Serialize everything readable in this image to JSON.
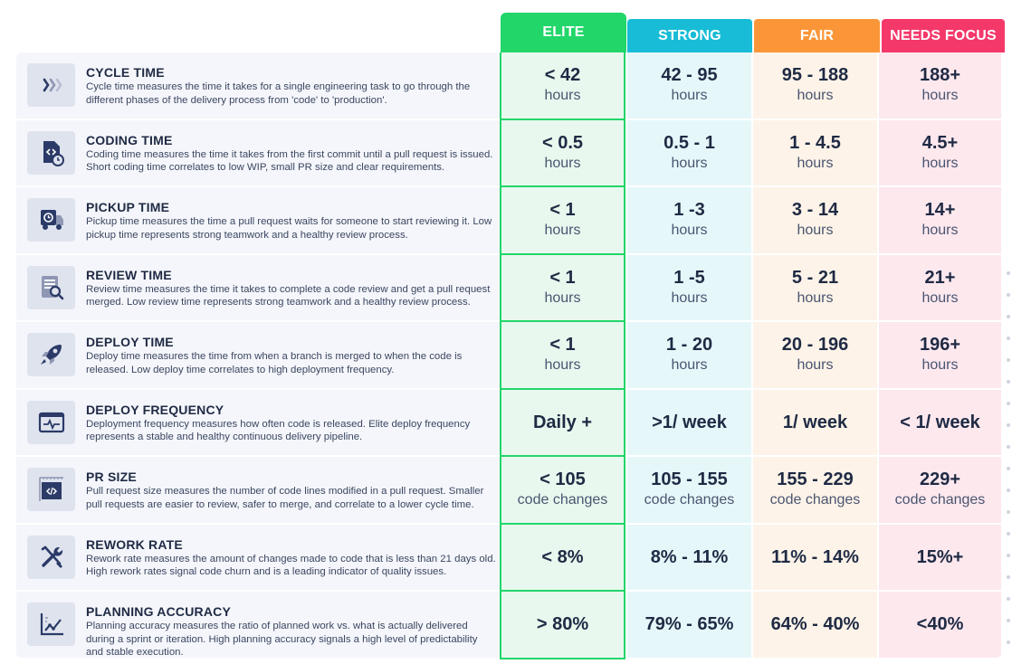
{
  "headers": {
    "elite": "ELITE",
    "strong": "STRONG",
    "fair": "FAIR",
    "needs_focus": "NEEDS FOCUS"
  },
  "colors": {
    "elite": "#22d66a",
    "strong": "#18bcd6",
    "fair": "#fb9638",
    "needs_focus": "#f4386a"
  },
  "rows": [
    {
      "icon": "chevrons-icon",
      "title": "CYCLE TIME",
      "desc": "Cycle time measures the time it takes for a single engineering task to go through the different phases of the delivery process from 'code' to 'production'.",
      "elite": {
        "main": "< 42",
        "unit": "hours"
      },
      "strong": {
        "main": "42 - 95",
        "unit": "hours"
      },
      "fair": {
        "main": "95 - 188",
        "unit": "hours"
      },
      "focus": {
        "main": "188+",
        "unit": "hours"
      }
    },
    {
      "icon": "code-file-clock-icon",
      "title": "CODING TIME",
      "desc": "Coding time measures the time it takes from the first commit until a pull request is issued. Short coding time correlates to low WIP, small PR size and clear requirements.",
      "elite": {
        "main": "< 0.5",
        "unit": "hours"
      },
      "strong": {
        "main": "0.5 - 1",
        "unit": "hours"
      },
      "fair": {
        "main": "1 - 4.5",
        "unit": "hours"
      },
      "focus": {
        "main": "4.5+",
        "unit": "hours"
      }
    },
    {
      "icon": "pickup-truck-icon",
      "title": "PICKUP TIME",
      "desc": "Pickup time measures the time a pull request waits for someone to start reviewing it. Low pickup time represents strong teamwork and a healthy review process.",
      "elite": {
        "main": "< 1",
        "unit": "hours"
      },
      "strong": {
        "main": "1 -3",
        "unit": "hours"
      },
      "fair": {
        "main": "3 - 14",
        "unit": "hours"
      },
      "focus": {
        "main": "14+",
        "unit": "hours"
      }
    },
    {
      "icon": "review-document-icon",
      "title": "REVIEW TIME",
      "desc": "Review time measures the time it takes to complete a code review and get a pull request merged. Low review time represents strong teamwork and a healthy review process.",
      "elite": {
        "main": "< 1",
        "unit": "hours"
      },
      "strong": {
        "main": "1 -5",
        "unit": "hours"
      },
      "fair": {
        "main": "5 - 21",
        "unit": "hours"
      },
      "focus": {
        "main": "21+",
        "unit": "hours"
      }
    },
    {
      "icon": "rocket-icon",
      "title": "DEPLOY TIME",
      "desc": "Deploy time measures the time from when a branch is merged to when the code is released. Low deploy time correlates to high deployment frequency.",
      "elite": {
        "main": "< 1",
        "unit": "hours"
      },
      "strong": {
        "main": "1 - 20",
        "unit": "hours"
      },
      "fair": {
        "main": "20 - 196",
        "unit": "hours"
      },
      "focus": {
        "main": "196+",
        "unit": "hours"
      }
    },
    {
      "icon": "pulse-window-icon",
      "title": "DEPLOY FREQUENCY",
      "desc": "Deployment frequency measures how often code is released. Elite deploy frequency represents a stable and healthy continuous delivery pipeline.",
      "elite": {
        "main": "Daily +",
        "unit": ""
      },
      "strong": {
        "main": ">1/ week",
        "unit": ""
      },
      "fair": {
        "main": "1/ week",
        "unit": ""
      },
      "focus": {
        "main": "< 1/ week",
        "unit": ""
      }
    },
    {
      "icon": "code-ruler-icon",
      "title": "PR SIZE",
      "desc": "Pull request size measures the number of code lines modified in a pull request. Smaller pull requests are easier to review, safer to merge, and correlate to a lower cycle time.",
      "elite": {
        "main": "< 105",
        "unit": "code changes"
      },
      "strong": {
        "main": "105 - 155",
        "unit": "code changes"
      },
      "fair": {
        "main": "155 - 229",
        "unit": "code changes"
      },
      "focus": {
        "main": "229+",
        "unit": "code changes"
      }
    },
    {
      "icon": "tools-icon",
      "title": "REWORK RATE",
      "desc": "Rework rate measures the amount of changes made to code that is less than 21 days old. High rework rates signal code churn and is a leading indicator of quality issues.",
      "elite": {
        "main": "< 8%",
        "unit": ""
      },
      "strong": {
        "main": "8% - 11%",
        "unit": ""
      },
      "fair": {
        "main": "11% - 14%",
        "unit": ""
      },
      "focus": {
        "main": "15%+",
        "unit": ""
      }
    },
    {
      "icon": "line-chart-icon",
      "title": "PLANNING ACCURACY",
      "desc": "Planning accuracy measures the ratio of planned work vs. what is actually delivered during a sprint or iteration. High planning accuracy signals a high level of predictability and stable execution.",
      "elite": {
        "main": "> 80%",
        "unit": ""
      },
      "strong": {
        "main": "79% - 65%",
        "unit": ""
      },
      "fair": {
        "main": "64% - 40%",
        "unit": ""
      },
      "focus": {
        "main": "<40%",
        "unit": ""
      }
    }
  ]
}
